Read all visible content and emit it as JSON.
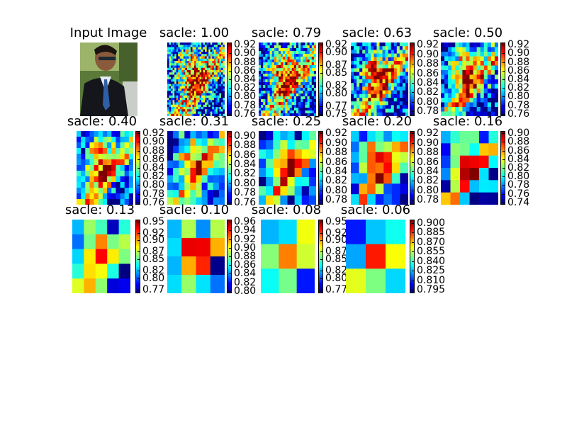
{
  "chart_data": {
    "type": "heatmap",
    "colormap": "jet",
    "input_panel": {
      "title": "Input Image",
      "image": "photo of man in suit and sunglasses"
    },
    "panels": [
      {
        "title": "sacle: 1.00",
        "scale": 1.0,
        "grid": 32,
        "ticks": [
          "0.92",
          "0.90",
          "0.88",
          "0.86",
          "0.84",
          "0.82",
          "0.80",
          "0.78",
          "0.76"
        ],
        "vmin": 0.755,
        "vmax": 0.925
      },
      {
        "title": "sacle: 0.79",
        "scale": 0.79,
        "grid": 26,
        "ticks": [
          "0.92",
          "0.90",
          "0.87",
          "0.85",
          "0.82",
          "0.80",
          "0.77",
          "0.75"
        ],
        "vmin": 0.745,
        "vmax": 0.925
      },
      {
        "title": "sacle: 0.63",
        "scale": 0.63,
        "grid": 20,
        "ticks": [
          "0.92",
          "0.90",
          "0.88",
          "0.86",
          "0.84",
          "0.82",
          "0.80",
          "0.78"
        ],
        "vmin": 0.77,
        "vmax": 0.925
      },
      {
        "title": "sacle: 0.50",
        "scale": 0.5,
        "grid": 16,
        "ticks": [
          "0.92",
          "0.90",
          "0.88",
          "0.86",
          "0.84",
          "0.82",
          "0.80",
          "0.78",
          "0.76"
        ],
        "vmin": 0.755,
        "vmax": 0.925
      },
      {
        "title": "sacle: 0.40",
        "scale": 0.4,
        "grid": 13,
        "ticks": [
          "0.92",
          "0.90",
          "0.88",
          "0.86",
          "0.84",
          "0.82",
          "0.80",
          "0.78",
          "0.76"
        ],
        "vmin": 0.755,
        "vmax": 0.925
      },
      {
        "title": "sacle: 0.31",
        "scale": 0.31,
        "grid": 10,
        "ticks": [
          "0.90",
          "0.88",
          "0.86",
          "0.84",
          "0.82",
          "0.80",
          "0.78",
          "0.76"
        ],
        "vmin": 0.755,
        "vmax": 0.91
      },
      {
        "title": "sacle: 0.25",
        "scale": 0.25,
        "grid": 8,
        "ticks": [
          "0.92",
          "0.90",
          "0.88",
          "0.86",
          "0.84",
          "0.82",
          "0.80",
          "0.78"
        ],
        "vmin": 0.77,
        "vmax": 0.925
      },
      {
        "title": "sacle: 0.20",
        "scale": 0.2,
        "grid": 7,
        "ticks": [
          "0.92",
          "0.90",
          "0.88",
          "0.86",
          "0.84",
          "0.82",
          "0.80",
          "0.78"
        ],
        "vmin": 0.77,
        "vmax": 0.925
      },
      {
        "title": "sacle: 0.16",
        "scale": 0.16,
        "grid": 6,
        "ticks": [
          "0.90",
          "0.88",
          "0.86",
          "0.84",
          "0.82",
          "0.80",
          "0.78",
          "0.76",
          "0.74"
        ],
        "vmin": 0.735,
        "vmax": 0.905
      },
      {
        "title": "sacle: 0.13",
        "scale": 0.13,
        "grid": 5,
        "ticks": [
          "0.95",
          "0.92",
          "0.90",
          "0.87",
          "0.85",
          "0.82",
          "0.80",
          "0.77"
        ],
        "vmin": 0.76,
        "vmax": 0.955
      },
      {
        "title": "sacle: 0.10",
        "scale": 0.1,
        "grid": 4,
        "ticks": [
          "0.96",
          "0.94",
          "0.92",
          "0.90",
          "0.88",
          "0.86",
          "0.84",
          "0.82",
          "0.80"
        ],
        "vmin": 0.795,
        "vmax": 0.965
      },
      {
        "title": "sacle: 0.08",
        "scale": 0.08,
        "grid": 3,
        "ticks": [
          "0.95",
          "0.92",
          "0.90",
          "0.87",
          "0.85",
          "0.82",
          "0.80",
          "0.77"
        ],
        "vmin": 0.76,
        "vmax": 0.955
      },
      {
        "title": "sacle: 0.06",
        "scale": 0.06,
        "grid": 3,
        "ticks": [
          "0.900",
          "0.885",
          "0.870",
          "0.855",
          "0.840",
          "0.825",
          "0.810",
          "0.795"
        ],
        "vmin": 0.79,
        "vmax": 0.905
      }
    ]
  }
}
